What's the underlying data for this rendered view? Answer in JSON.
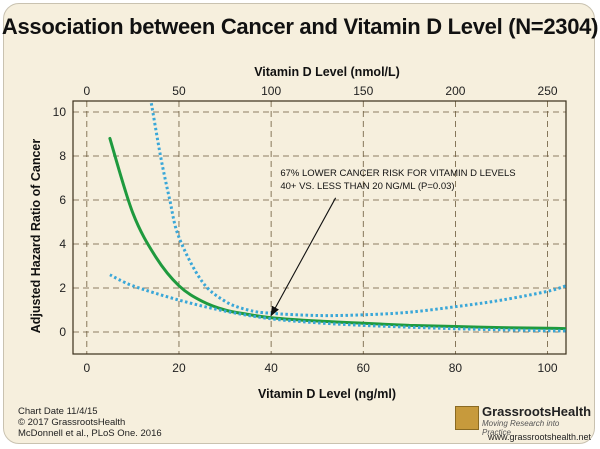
{
  "chart_data": {
    "type": "line",
    "title": "Association between Cancer and Vitamin D Level (N=2304)",
    "xlabel": "Vitamin D Level (ng/ml)",
    "x2label": "Vitamin D Level (nmol/L)",
    "ylabel": "Adjusted Hazard Ratio of Cancer",
    "xlim": [
      -3,
      104
    ],
    "ylim": [
      -1,
      10.5
    ],
    "xticks": [
      0,
      20,
      40,
      60,
      80,
      100
    ],
    "x2ticks": [
      0,
      50,
      100,
      150,
      200,
      250
    ],
    "x2_per_x": 2.5,
    "yticks": [
      0,
      2,
      4,
      6,
      8,
      10
    ],
    "grid": true,
    "series": [
      {
        "role": "estimate",
        "style": "solid",
        "color": "#1f9a3e",
        "x": [
          5,
          10,
          15,
          20,
          25,
          30,
          35,
          40,
          50,
          60,
          70,
          80,
          90,
          100,
          104
        ],
        "y": [
          8.8,
          5.4,
          3.4,
          2.1,
          1.4,
          1.0,
          0.8,
          0.65,
          0.5,
          0.4,
          0.3,
          0.25,
          0.2,
          0.17,
          0.15
        ]
      },
      {
        "role": "upper-ci",
        "style": "dotted",
        "color": "#3aa7d8",
        "x": [
          14,
          16,
          18,
          20,
          25,
          30,
          35,
          40,
          50,
          60,
          70,
          80,
          90,
          100,
          104
        ],
        "y": [
          10.4,
          8.0,
          6.0,
          4.3,
          2.3,
          1.4,
          1.0,
          0.85,
          0.75,
          0.78,
          0.9,
          1.15,
          1.45,
          1.85,
          2.1
        ]
      },
      {
        "role": "lower-ci",
        "style": "dotted",
        "color": "#3aa7d8",
        "x": [
          5,
          10,
          20,
          30,
          40,
          50,
          60,
          70,
          80,
          90,
          100,
          104
        ],
        "y": [
          2.6,
          2.1,
          1.45,
          0.95,
          0.6,
          0.42,
          0.3,
          0.22,
          0.15,
          0.1,
          0.06,
          0.05
        ]
      }
    ],
    "annotation": {
      "lines": [
        "67% LOWER CANCER RISK FOR VITAMIN D LEVELS",
        "40+ VS. LESS THAN 20 NG/ML (P=0.03)"
      ],
      "text_at": [
        42,
        7.1
      ],
      "arrow_from": [
        54,
        6.1
      ],
      "arrow_to": [
        40,
        0.75
      ]
    }
  },
  "footer": {
    "chart_date": "Chart Date 11/4/15",
    "copyright": "© 2017 GrassrootsHealth",
    "citation": "McDonnell et al., PLoS One. 2016",
    "logo_name": "GrassrootsHealth",
    "logo_tagline": "Moving Research into Practice",
    "url": "www.grassrootshealth.net"
  },
  "colors": {
    "background": "#f6efdd",
    "grid": "#6b5a3a",
    "estimate": "#1f9a3e",
    "ci": "#3aa7d8"
  }
}
